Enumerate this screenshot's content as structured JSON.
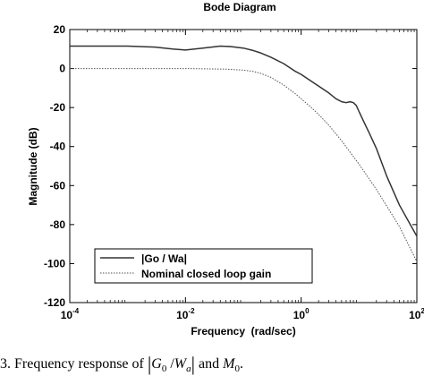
{
  "chart_data": {
    "type": "line",
    "title": "Bode Diagram",
    "xlabel": "Frequency  (rad/sec)",
    "ylabel": "Magnitude (dB)",
    "xscale": "log",
    "xlim": [
      0.0001,
      100
    ],
    "ylim": [
      -120,
      20
    ],
    "x_ticks": [
      {
        "base": "10",
        "exp": "-4"
      },
      {
        "base": "10",
        "exp": "-2"
      },
      {
        "base": "10",
        "exp": "0"
      },
      {
        "base": "10",
        "exp": "2"
      }
    ],
    "y_ticks": [
      "20",
      "0",
      "-20",
      "-40",
      "-60",
      "-80",
      "-100",
      "-120"
    ],
    "grid": false,
    "legend_position": "bottom-left",
    "series": [
      {
        "name": "|Go / Wa|",
        "style": "solid",
        "color": "#333333",
        "x": [
          0.0001,
          0.001,
          0.003,
          0.006,
          0.01,
          0.02,
          0.04,
          0.06,
          0.1,
          0.15,
          0.2,
          0.3,
          0.5,
          0.8,
          1,
          1.5,
          2,
          3,
          4,
          5,
          6,
          7,
          8,
          9,
          10,
          12,
          15,
          20,
          30,
          50,
          100
        ],
        "y": [
          11.5,
          11.5,
          11.0,
          10.0,
          9.5,
          10.5,
          11.5,
          11.3,
          10.5,
          9.2,
          8.0,
          5.8,
          2.5,
          -1.5,
          -3.0,
          -6.5,
          -9.0,
          -12.5,
          -15.5,
          -17.0,
          -17.5,
          -17.0,
          -17.5,
          -19.0,
          -22.0,
          -27.0,
          -33.0,
          -41.0,
          -55.0,
          -70.0,
          -86.0
        ]
      },
      {
        "name": "Nominal closed loop gain",
        "style": "dotted",
        "color": "#555555",
        "x": [
          0.0001,
          0.001,
          0.01,
          0.05,
          0.1,
          0.15,
          0.2,
          0.3,
          0.5,
          0.8,
          1,
          1.5,
          2,
          3,
          5,
          10,
          20,
          50,
          100
        ],
        "y": [
          0,
          0,
          0,
          -0.3,
          -0.8,
          -1.5,
          -2.5,
          -4.5,
          -8.5,
          -13.0,
          -15.5,
          -20.0,
          -23.5,
          -29.0,
          -37.0,
          -49.0,
          -62.0,
          -81.0,
          -99.0
        ]
      }
    ]
  },
  "caption": {
    "prefix": "3. Frequency response of",
    "abs_left": "|",
    "g_sym": "G",
    "g_sub": "0",
    "slash": " /",
    "w_sym": "W",
    "w_sub": "a",
    "abs_right": "|",
    "and": "and",
    "m_sym": "M",
    "m_sub": "0",
    "end": "."
  }
}
